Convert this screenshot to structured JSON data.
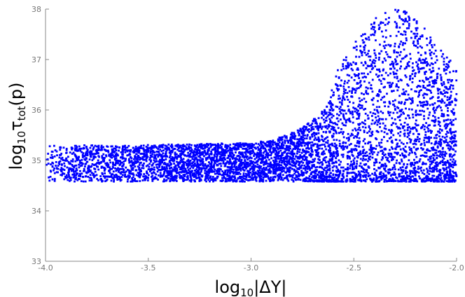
{
  "chart_data": {
    "type": "scatter",
    "title": "",
    "xlabel": {
      "prefix": "log",
      "sub": "10",
      "rest": "|ΔY|"
    },
    "ylabel": {
      "prefix": "log",
      "sub": "10",
      "mid": "τ",
      "sub2": "tot",
      "rest": "(p)"
    },
    "xlim": [
      -4.0,
      -2.0
    ],
    "ylim": [
      33,
      38
    ],
    "x_ticks": [
      -4.0,
      -3.5,
      -3.0,
      -2.5,
      -2.0
    ],
    "x_tick_labels": [
      "-4.0",
      "-3.5",
      "-3.0",
      "-2.5",
      "-2.0"
    ],
    "y_ticks": [
      33,
      34,
      35,
      36,
      37,
      38
    ],
    "y_tick_labels": [
      "33",
      "34",
      "35",
      "36",
      "37",
      "38"
    ],
    "grid": false,
    "legend": "none",
    "point_color": "#0000ff",
    "envelope": {
      "x": [
        -4.0,
        -3.6,
        -3.2,
        -3.0,
        -2.9,
        -2.8,
        -2.75,
        -2.7,
        -2.65,
        -2.62,
        -2.6,
        -2.58,
        -2.55,
        -2.5,
        -2.45,
        -2.4,
        -2.35,
        -2.3,
        -2.25,
        -2.2,
        -2.15,
        -2.1,
        -2.05,
        -2.0
      ],
      "lower": [
        34.58,
        34.58,
        34.58,
        34.58,
        34.58,
        34.58,
        34.58,
        34.58,
        34.58,
        34.58,
        34.58,
        34.58,
        34.58,
        34.58,
        34.58,
        34.58,
        34.58,
        34.58,
        34.58,
        34.58,
        34.58,
        34.58,
        34.58,
        34.58
      ],
      "upper": [
        35.3,
        35.3,
        35.33,
        35.35,
        35.4,
        35.55,
        35.65,
        35.8,
        36.0,
        36.2,
        36.5,
        36.8,
        37.0,
        37.3,
        37.6,
        37.8,
        37.95,
        38.0,
        38.0,
        37.8,
        37.6,
        37.3,
        37.1,
        36.8
      ]
    }
  }
}
